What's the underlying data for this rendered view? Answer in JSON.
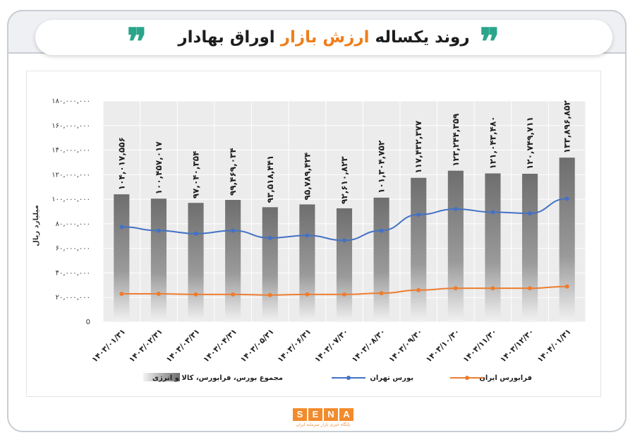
{
  "header": {
    "title_part1": "روند یکساله",
    "title_highlight": "ارزش بازار",
    "title_part2": "اوراق بهادار",
    "quote_glyph": "❞",
    "accent_color": "#f07d1a",
    "quote_color": "#2aa58b"
  },
  "logo": {
    "letters": [
      "S",
      "E",
      "N",
      "A"
    ],
    "subtitle": "پایگاه خبری بازار سرمایه ایران",
    "color": "#f28b2c"
  },
  "chart_data": {
    "type": "bar",
    "title": "",
    "ylabel": "میلیارد ریال",
    "xlabel": "",
    "ylim": [
      0,
      180000000
    ],
    "yticks": [
      0,
      20000000,
      40000000,
      60000000,
      80000000,
      100000000,
      120000000,
      140000000,
      160000000,
      180000000
    ],
    "ytick_labels": [
      "0",
      "۲۰,۰۰۰,۰۰۰",
      "۴۰,۰۰۰,۰۰۰",
      "۶۰,۰۰۰,۰۰۰",
      "۸۰,۰۰۰,۰۰۰",
      "۱۰۰,۰۰۰,۰۰۰",
      "۱۲۰,۰۰۰,۰۰۰",
      "۱۴۰,۰۰۰,۰۰۰",
      "۱۶۰,۰۰۰,۰۰۰",
      "۱۸۰,۰۰۰,۰۰۰"
    ],
    "grid": true,
    "legend_position": "bottom",
    "categories": [
      "۱۴۰۳/۰۱/۳۱",
      "۱۴۰۳/۰۲/۳۱",
      "۱۴۰۳/۰۳/۳۱",
      "۱۴۰۳/۰۴/۳۱",
      "۱۴۰۳/۰۵/۳۱",
      "۱۴۰۳/۰۶/۳۱",
      "۱۴۰۳/۰۷/۳۰",
      "۱۴۰۳/۰۸/۳۰",
      "۱۴۰۳/۰۹/۳۰",
      "۱۴۰۳/۱۰/۳۰",
      "۱۴۰۳/۱۱/۳۰",
      "۱۴۰۳/۱۲/۳۰",
      "۱۴۰۴/۰۱/۳۱"
    ],
    "series": [
      {
        "name": "مجموع بورس، فرابورس، کالا و انرژی",
        "kind": "bar",
        "color": "#7f7f7f",
        "values": [
          104017556,
          100457017,
          97040354,
          99469034,
          93518441,
          95789424,
          92610823,
          101304752,
          117432377,
          123244359,
          121043480,
          120749711,
          133896852
        ],
        "labels": [
          "۱۰۴,۰۱۷,۵۵۶",
          "۱۰۰,۴۵۷,۰۱۷",
          "۹۷,۰۴۰,۳۵۴",
          "۹۹,۴۶۹,۰۳۴",
          "۹۳,۵۱۸,۴۴۱",
          "۹۵,۷۸۹,۴۲۴",
          "۹۲,۶۱۰,۸۲۳",
          "۱۰۱,۳۰۴,۷۵۲",
          "۱۱۷,۴۳۲,۳۷۷",
          "۱۲۳,۲۴۴,۳۵۹",
          "۱۲۱,۰۴۳,۴۸۰",
          "۱۲۰,۷۴۹,۷۱۱",
          "۱۳۳,۸۹۶,۸۵۲"
        ]
      },
      {
        "name": "بورس تهران",
        "kind": "line",
        "color": "#4472c4",
        "values": [
          77500000,
          74500000,
          72000000,
          74500000,
          68500000,
          70500000,
          66500000,
          74500000,
          87500000,
          92000000,
          89500000,
          88500000,
          100500000
        ]
      },
      {
        "name": "فرابورس ایران",
        "kind": "line",
        "color": "#ed7d31",
        "values": [
          23000000,
          23000000,
          22500000,
          22500000,
          22000000,
          22500000,
          22500000,
          23500000,
          26000000,
          27500000,
          27500000,
          27500000,
          29000000
        ]
      }
    ]
  }
}
